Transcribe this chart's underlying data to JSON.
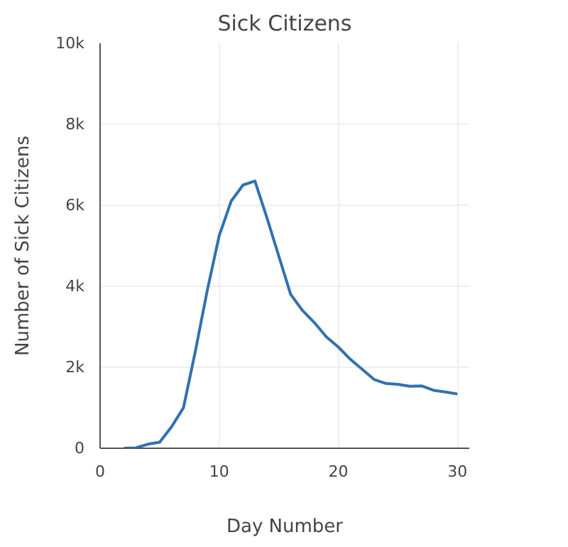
{
  "chart_data": {
    "type": "line",
    "title": "Sick Citizens",
    "xlabel": "Day Number",
    "ylabel": "Number of Sick Citizens",
    "x": [
      2,
      3,
      4,
      5,
      6,
      7,
      8,
      9,
      10,
      11,
      12,
      13,
      14,
      15,
      16,
      17,
      18,
      19,
      20,
      21,
      22,
      23,
      24,
      25,
      26,
      27,
      28,
      29,
      30
    ],
    "series": [
      {
        "color": "#3171b0",
        "values": [
          0,
          10,
          100,
          150,
          530,
          1000,
          2400,
          3900,
          5250,
          6100,
          6500,
          6600,
          5700,
          4750,
          3800,
          3400,
          3100,
          2750,
          2500,
          2200,
          1950,
          1700,
          1600,
          1580,
          1530,
          1540,
          1430,
          1390,
          1340
        ]
      }
    ],
    "xlim": [
      0,
      31
    ],
    "ylim": [
      0,
      10000
    ],
    "xticks": [
      0,
      10,
      20,
      30
    ],
    "yticks": [
      0,
      {
        "value": 2000,
        "label": "2k"
      },
      {
        "value": 4000,
        "label": "4k"
      },
      {
        "value": 6000,
        "label": "6k"
      },
      {
        "value": 8000,
        "label": "8k"
      },
      {
        "value": 10000,
        "label": "10k"
      }
    ],
    "grid": true,
    "marker": "none",
    "line_style": "solid"
  }
}
